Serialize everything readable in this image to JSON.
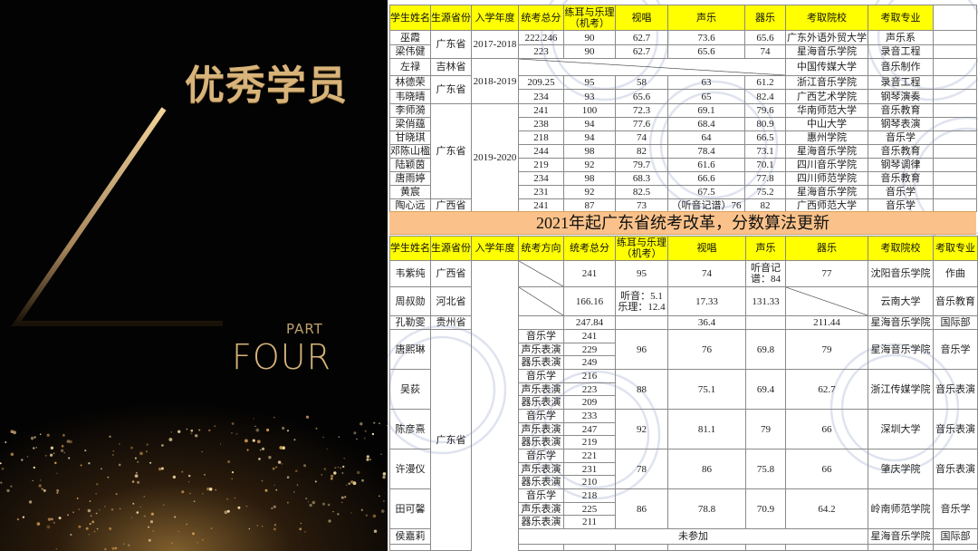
{
  "left_panel": {
    "title": "优秀学员",
    "number": "4",
    "part_label": "PART",
    "part_word": "FOUR",
    "accent_color": "#d8b47a"
  },
  "watermark": "广州星知海音乐依霏教育",
  "top_table": {
    "headers": [
      "学生姓名",
      "生源省份",
      "入学年度",
      "统考总分",
      "练耳与乐理\n（机考）",
      "视唱",
      "声乐",
      "器乐",
      "考取院校",
      "考取专业"
    ],
    "rows": [
      {
        "name": "巫霞",
        "province": "广东省",
        "year": "2017-2018",
        "scores": [
          "222.246",
          "90",
          "62.7",
          "73.6",
          "65.6"
        ],
        "school": "广东外语外贸大学",
        "major": "声乐系"
      },
      {
        "name": "梁伟健",
        "province": null,
        "year": null,
        "scores": [
          "223",
          "90",
          "62.7",
          "65.6",
          "74"
        ],
        "school": "星海音乐学院",
        "major": "录音工程"
      },
      {
        "name": "左禄",
        "province": "吉林省",
        "year": "2018-2019",
        "scores": null,
        "school": "中国传媒大学",
        "major": "音乐制作"
      },
      {
        "name": "林德荣",
        "province": "广东省",
        "year": null,
        "scores": [
          "209.25",
          "95",
          "58",
          "63",
          "61.2"
        ],
        "school": "浙江音乐学院",
        "major": "录音工程"
      },
      {
        "name": "韦晓晴",
        "province": null,
        "year": null,
        "scores": [
          "234",
          "93",
          "65.6",
          "65",
          "82.4"
        ],
        "school": "广西艺术学院",
        "major": "钢琴演奏"
      },
      {
        "name": "李师漪",
        "province": "广东省",
        "year": "2019-2020",
        "scores": [
          "241",
          "100",
          "72.3",
          "69.1",
          "79.6"
        ],
        "school": "华南师范大学",
        "major": "音乐教育"
      },
      {
        "name": "梁俏蕴",
        "province": null,
        "year": null,
        "scores": [
          "238",
          "94",
          "77.6",
          "68.4",
          "80.9"
        ],
        "school": "中山大学",
        "major": "钢琴表演"
      },
      {
        "name": "甘晓琪",
        "province": null,
        "year": null,
        "scores": [
          "218",
          "94",
          "74",
          "64",
          "66.5"
        ],
        "school": "惠州学院",
        "major": "音乐学"
      },
      {
        "name": "邓陈山楹",
        "province": null,
        "year": null,
        "scores": [
          "244",
          "98",
          "82",
          "78.4",
          "73.1"
        ],
        "school": "星海音乐学院",
        "major": "音乐教育"
      },
      {
        "name": "陆颖茵",
        "province": null,
        "year": null,
        "scores": [
          "219",
          "92",
          "79.7",
          "61.6",
          "70.1"
        ],
        "school": "四川音乐学院",
        "major": "钢琴调律"
      },
      {
        "name": "唐雨婷",
        "province": null,
        "year": null,
        "scores": [
          "234",
          "98",
          "68.3",
          "66.6",
          "77.8"
        ],
        "school": "四川师范学院",
        "major": "音乐教育"
      },
      {
        "name": "黄宸",
        "province": null,
        "year": null,
        "scores": [
          "231",
          "92",
          "82.5",
          "67.5",
          "75.2"
        ],
        "school": "星海音乐学院",
        "major": "音乐学"
      },
      {
        "name": "陶心远",
        "province": "广西省",
        "year": null,
        "scores": [
          "241",
          "87",
          "73",
          "（听音记谱）76",
          "82"
        ],
        "school": "广西师范大学",
        "major": "音乐学"
      }
    ]
  },
  "banner": "2021年起广东省统考改革，分数算法更新",
  "bottom_table": {
    "headers": [
      "学生姓名",
      "生源省份",
      "入学年度",
      "统考方向",
      "统考总分",
      "练耳与乐理\n（机考）",
      "视唱",
      "声乐",
      "器乐",
      "考取院校",
      "考取专业"
    ],
    "rows": [
      {
        "name": "韦紫纯",
        "province": "广西省",
        "direction": "/",
        "total": "241",
        "ear": "95",
        "sight": "74",
        "vocal": "听音记\n谱：84",
        "instr": "77",
        "school": "沈阳音乐学院",
        "major": "作曲"
      },
      {
        "name": "周叔勋",
        "province": "河北省",
        "direction": "/",
        "total": "166.16",
        "ear": "听音：5.1\n乐理：12.4",
        "sight": "17.33",
        "vocal": "131.33",
        "instr": "/",
        "school": "云南大学",
        "major": "音乐教育"
      },
      {
        "name": "孔勒雯",
        "province": "贵州省",
        "direction": "",
        "total": "247.84",
        "ear": "",
        "sight": "36.4",
        "vocal": "",
        "instr": "211.44",
        "school": "星海音乐学院",
        "major": "国际部"
      },
      {
        "name": "唐熙琳",
        "province": "广东省",
        "subs": [
          [
            "音乐学",
            "241"
          ],
          [
            "声乐表演",
            "229"
          ],
          [
            "器乐表演",
            "249"
          ]
        ],
        "ear": "96",
        "sight": "76",
        "vocal": "69.8",
        "instr": "79",
        "school": "星海音乐学院",
        "major": "音乐学"
      },
      {
        "name": "吴荻",
        "province": null,
        "subs": [
          [
            "音乐学",
            "216"
          ],
          [
            "声乐表演",
            "223"
          ],
          [
            "器乐表演",
            "209"
          ]
        ],
        "ear": "88",
        "sight": "75.1",
        "vocal": "69.4",
        "instr": "62.7",
        "school": "浙江传媒学院",
        "major": "音乐表演"
      },
      {
        "name": "陈彦熹",
        "province": null,
        "subs": [
          [
            "音乐学",
            "233"
          ],
          [
            "声乐表演",
            "247"
          ],
          [
            "器乐表演",
            "219"
          ]
        ],
        "ear": "92",
        "sight": "81.1",
        "vocal": "79",
        "instr": "66",
        "school": "深圳大学",
        "major": "音乐表演"
      },
      {
        "name": "许漫仪",
        "province": null,
        "subs": [
          [
            "音乐学",
            "221"
          ],
          [
            "声乐表演",
            "231"
          ],
          [
            "器乐表演",
            "210"
          ]
        ],
        "ear": "78",
        "sight": "86",
        "vocal": "75.8",
        "instr": "66",
        "school": "肇庆学院",
        "major": "音乐表演"
      },
      {
        "name": "田可馨",
        "province": null,
        "subs": [
          [
            "音乐学",
            "218"
          ],
          [
            "声乐表演",
            "225"
          ],
          [
            "器乐表演",
            "211"
          ]
        ],
        "ear": "86",
        "sight": "78.8",
        "vocal": "70.9",
        "instr": "64.2",
        "school": "岭南师范学院",
        "major": "音乐学"
      },
      {
        "name": "侯嘉莉",
        "province": null,
        "merged": "未参加",
        "school": "星海音乐学院",
        "major": "国际部"
      }
    ]
  },
  "colors": {
    "header_yellow": "#ffff00",
    "banner_orange": "#fac28a",
    "gold": "#d8b47a",
    "panel_bg": "#030303"
  }
}
